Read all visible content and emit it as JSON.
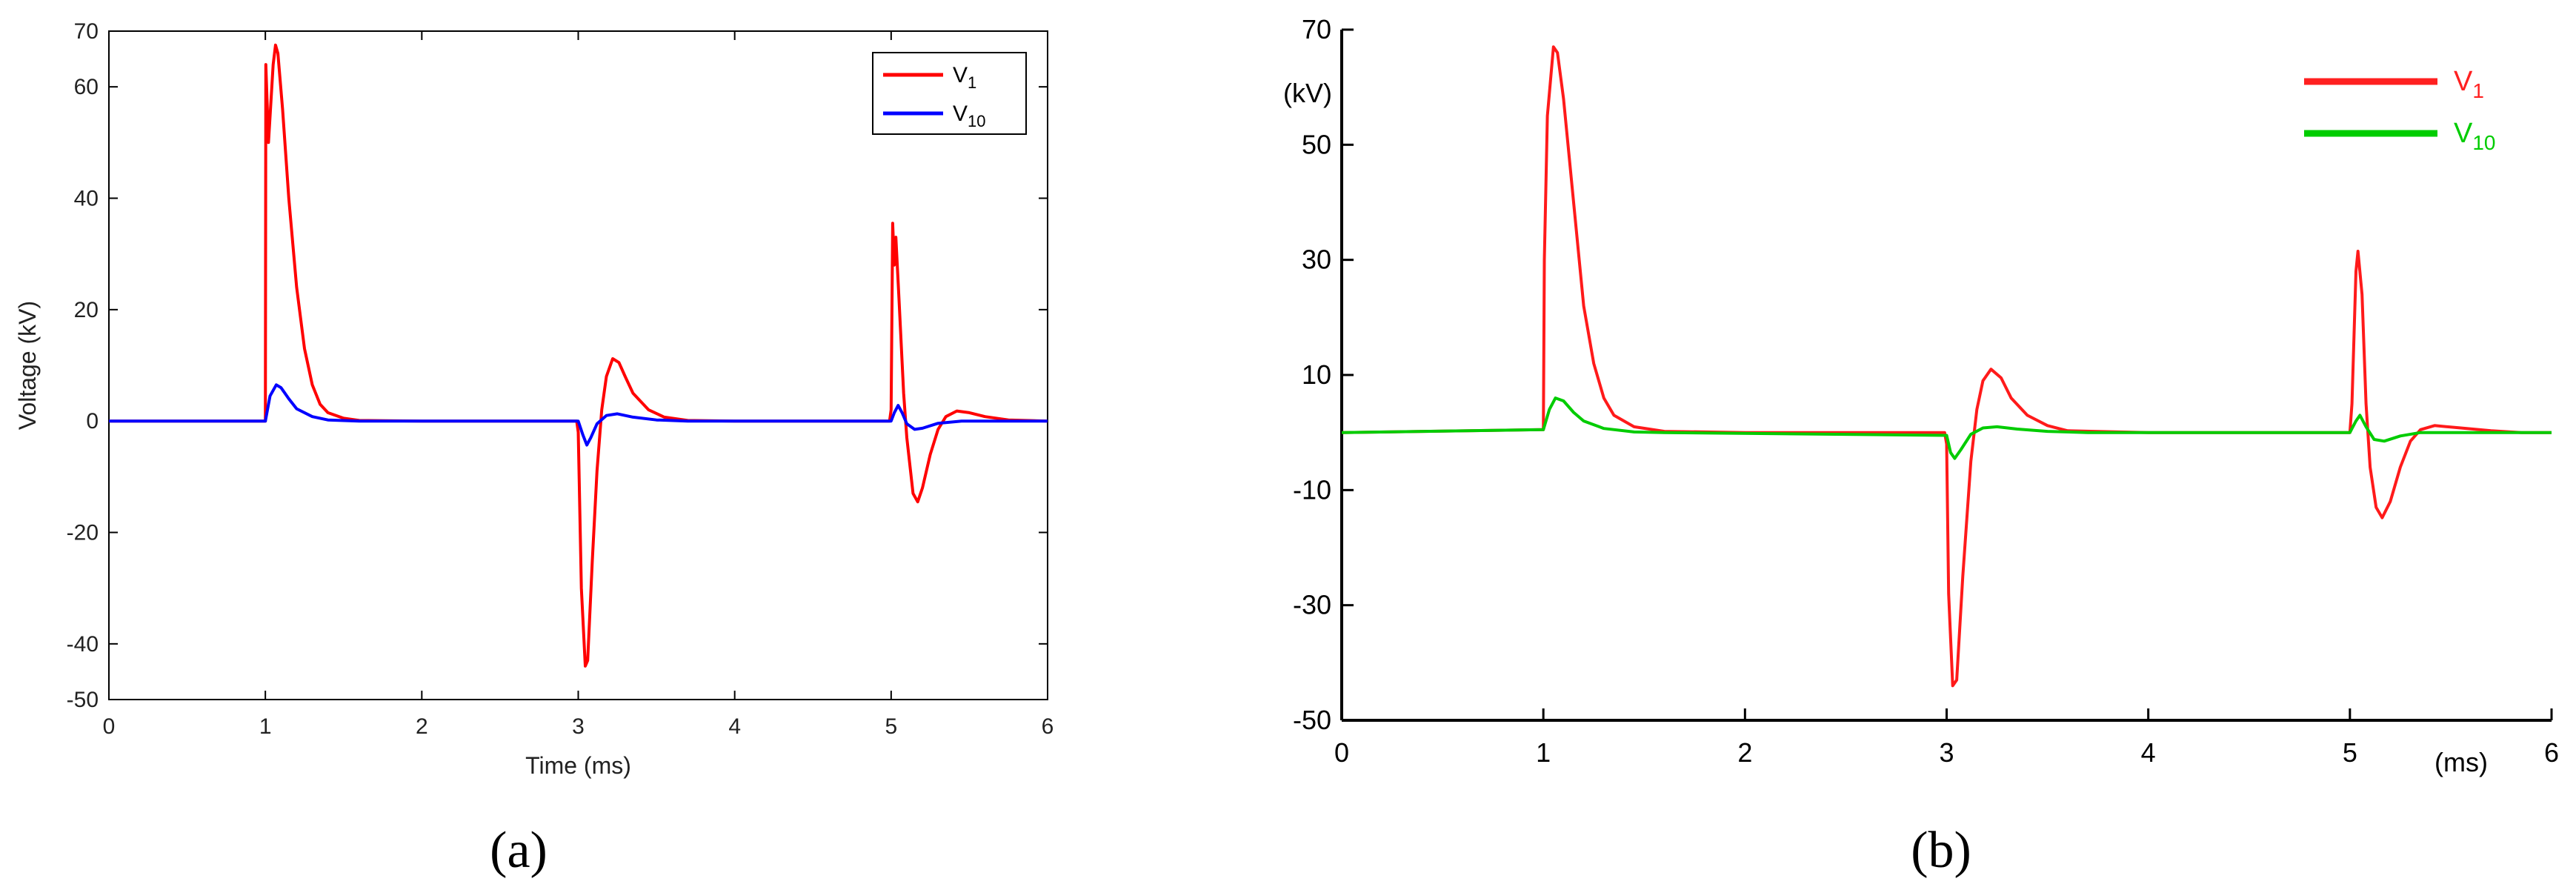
{
  "chart_data": [
    {
      "type": "line",
      "panel_label": "(a)",
      "xlabel": "Time (ms)",
      "ylabel": "Voltage (kV)",
      "xlim": [
        0,
        6
      ],
      "ylim": [
        -50,
        70
      ],
      "xticks": [
        "0",
        "1",
        "2",
        "3",
        "4",
        "5",
        "6"
      ],
      "yticks": [
        "70",
        "60",
        "40",
        "20",
        "0",
        "-20",
        "-40",
        "-50"
      ],
      "legend": {
        "position": "top-right",
        "entries": [
          {
            "name": "V",
            "sub": "1",
            "color": "#ff0000"
          },
          {
            "name": "V",
            "sub": "10",
            "color": "#0000ff"
          }
        ]
      },
      "series": [
        {
          "name": "V1",
          "color": "#ff0000",
          "points": [
            [
              0,
              0
            ],
            [
              0.995,
              0
            ],
            [
              1.0,
              0
            ],
            [
              1.003,
              64
            ],
            [
              1.02,
              50
            ],
            [
              1.05,
              64
            ],
            [
              1.065,
              67.5
            ],
            [
              1.08,
              66
            ],
            [
              1.11,
              56
            ],
            [
              1.15,
              40
            ],
            [
              1.2,
              24
            ],
            [
              1.25,
              13
            ],
            [
              1.3,
              6.5
            ],
            [
              1.35,
              3
            ],
            [
              1.4,
              1.5
            ],
            [
              1.5,
              0.5
            ],
            [
              1.6,
              0.1
            ],
            [
              2.0,
              0
            ],
            [
              2.99,
              0
            ],
            [
              3.0,
              -2
            ],
            [
              3.02,
              -30
            ],
            [
              3.045,
              -44
            ],
            [
              3.06,
              -43
            ],
            [
              3.09,
              -25
            ],
            [
              3.12,
              -9
            ],
            [
              3.15,
              2
            ],
            [
              3.18,
              8
            ],
            [
              3.22,
              11.2
            ],
            [
              3.26,
              10.5
            ],
            [
              3.3,
              8
            ],
            [
              3.35,
              5
            ],
            [
              3.45,
              2
            ],
            [
              3.55,
              0.7
            ],
            [
              3.7,
              0.1
            ],
            [
              4.0,
              0
            ],
            [
              4.99,
              0
            ],
            [
              5.0,
              2
            ],
            [
              5.01,
              35.5
            ],
            [
              5.02,
              28
            ],
            [
              5.03,
              33
            ],
            [
              5.05,
              22
            ],
            [
              5.08,
              5
            ],
            [
              5.1,
              -3
            ],
            [
              5.14,
              -13
            ],
            [
              5.17,
              -14.5
            ],
            [
              5.2,
              -12
            ],
            [
              5.25,
              -6
            ],
            [
              5.3,
              -1.5
            ],
            [
              5.35,
              0.8
            ],
            [
              5.42,
              1.8
            ],
            [
              5.5,
              1.5
            ],
            [
              5.6,
              0.8
            ],
            [
              5.75,
              0.2
            ],
            [
              6.0,
              0
            ]
          ]
        },
        {
          "name": "V10",
          "color": "#0000ff",
          "points": [
            [
              0,
              0
            ],
            [
              1.0,
              0
            ],
            [
              1.03,
              4.5
            ],
            [
              1.07,
              6.5
            ],
            [
              1.1,
              6
            ],
            [
              1.15,
              4
            ],
            [
              1.2,
              2.2
            ],
            [
              1.3,
              0.8
            ],
            [
              1.4,
              0.2
            ],
            [
              1.6,
              0
            ],
            [
              3.0,
              0
            ],
            [
              3.03,
              -2.5
            ],
            [
              3.055,
              -4.3
            ],
            [
              3.08,
              -3
            ],
            [
              3.12,
              -0.5
            ],
            [
              3.18,
              1
            ],
            [
              3.25,
              1.3
            ],
            [
              3.35,
              0.7
            ],
            [
              3.5,
              0.2
            ],
            [
              3.7,
              0
            ],
            [
              5.0,
              0
            ],
            [
              5.02,
              1.5
            ],
            [
              5.045,
              2.8
            ],
            [
              5.07,
              1.5
            ],
            [
              5.1,
              -0.5
            ],
            [
              5.15,
              -1.5
            ],
            [
              5.2,
              -1.3
            ],
            [
              5.3,
              -0.4
            ],
            [
              5.45,
              0
            ],
            [
              6.0,
              0
            ]
          ]
        }
      ]
    },
    {
      "type": "line",
      "panel_label": "(b)",
      "xlabel": "(ms)",
      "ylabel": "(kV)",
      "xlim": [
        0,
        6
      ],
      "ylim": [
        -50,
        70
      ],
      "xticks": [
        "0",
        "1",
        "2",
        "3",
        "4",
        "5",
        "6"
      ],
      "yticks": [
        "70",
        "50",
        "30",
        "10",
        "-10",
        "-30",
        "-50"
      ],
      "legend": {
        "position": "top-right",
        "entries": [
          {
            "name": "V",
            "sub": "1",
            "color": "#ff2020"
          },
          {
            "name": "V",
            "sub": "10",
            "color": "#00cc00"
          }
        ]
      },
      "series": [
        {
          "name": "V1",
          "color": "#ff1a1a",
          "points": [
            [
              0,
              0
            ],
            [
              0.99,
              0.5
            ],
            [
              1.0,
              0.5
            ],
            [
              1.005,
              30
            ],
            [
              1.02,
              55
            ],
            [
              1.05,
              67
            ],
            [
              1.07,
              66
            ],
            [
              1.1,
              58
            ],
            [
              1.15,
              40
            ],
            [
              1.2,
              22
            ],
            [
              1.25,
              12
            ],
            [
              1.3,
              6
            ],
            [
              1.35,
              3
            ],
            [
              1.45,
              1
            ],
            [
              1.6,
              0.2
            ],
            [
              2.0,
              0
            ],
            [
              2.99,
              0
            ],
            [
              3.0,
              -2
            ],
            [
              3.01,
              -28
            ],
            [
              3.03,
              -44
            ],
            [
              3.05,
              -43
            ],
            [
              3.08,
              -25
            ],
            [
              3.12,
              -5
            ],
            [
              3.15,
              4
            ],
            [
              3.18,
              9
            ],
            [
              3.22,
              11
            ],
            [
              3.27,
              9.5
            ],
            [
              3.32,
              6
            ],
            [
              3.4,
              3
            ],
            [
              3.5,
              1.2
            ],
            [
              3.6,
              0.3
            ],
            [
              4.0,
              0
            ],
            [
              5.0,
              0
            ],
            [
              5.01,
              5
            ],
            [
              5.03,
              28
            ],
            [
              5.04,
              31.5
            ],
            [
              5.06,
              24
            ],
            [
              5.08,
              5
            ],
            [
              5.1,
              -6
            ],
            [
              5.13,
              -13
            ],
            [
              5.16,
              -14.8
            ],
            [
              5.2,
              -12
            ],
            [
              5.25,
              -6
            ],
            [
              5.3,
              -1.5
            ],
            [
              5.35,
              0.5
            ],
            [
              5.42,
              1.2
            ],
            [
              5.55,
              0.8
            ],
            [
              5.7,
              0.3
            ],
            [
              5.85,
              0
            ],
            [
              6.0,
              0
            ]
          ]
        },
        {
          "name": "V10",
          "color": "#00cc00",
          "points": [
            [
              0,
              0
            ],
            [
              1.0,
              0.5
            ],
            [
              1.03,
              4
            ],
            [
              1.06,
              6
            ],
            [
              1.1,
              5.5
            ],
            [
              1.15,
              3.5
            ],
            [
              1.2,
              2
            ],
            [
              1.3,
              0.7
            ],
            [
              1.45,
              0.1
            ],
            [
              1.6,
              0
            ],
            [
              3.0,
              -0.5
            ],
            [
              3.02,
              -3.5
            ],
            [
              3.04,
              -4.5
            ],
            [
              3.07,
              -3
            ],
            [
              3.12,
              -0.3
            ],
            [
              3.18,
              0.8
            ],
            [
              3.25,
              1
            ],
            [
              3.35,
              0.6
            ],
            [
              3.5,
              0.2
            ],
            [
              3.7,
              0
            ],
            [
              5.0,
              0
            ],
            [
              5.03,
              2
            ],
            [
              5.05,
              3
            ],
            [
              5.08,
              1
            ],
            [
              5.12,
              -1.2
            ],
            [
              5.17,
              -1.5
            ],
            [
              5.25,
              -0.6
            ],
            [
              5.35,
              0
            ],
            [
              6.0,
              0
            ]
          ]
        }
      ]
    }
  ]
}
